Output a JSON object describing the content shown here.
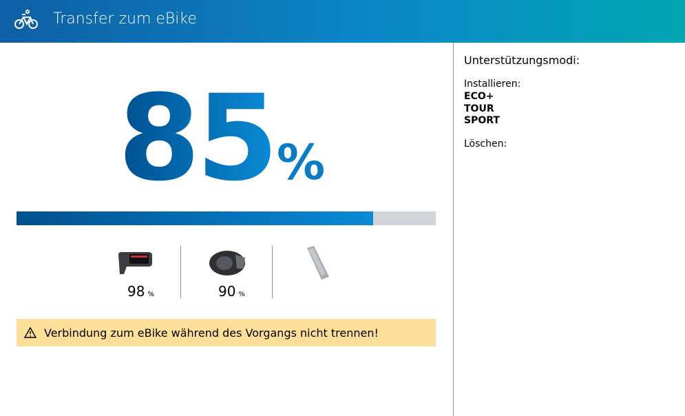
{
  "header": {
    "title": "Transfer zum eBike"
  },
  "progress": {
    "value": 85,
    "unit": "%"
  },
  "components": [
    {
      "value": 98,
      "unit": "%"
    },
    {
      "value": 90,
      "unit": "%"
    }
  ],
  "warning": "Verbindung zum eBike während des Vorgangs nicht trennen!",
  "sidebar": {
    "title": "Unterstützungsmodi:",
    "install_label": "Installieren:",
    "install_modes": [
      "ECO+",
      "TOUR",
      "SPORT"
    ],
    "delete_label": "Löschen:"
  }
}
